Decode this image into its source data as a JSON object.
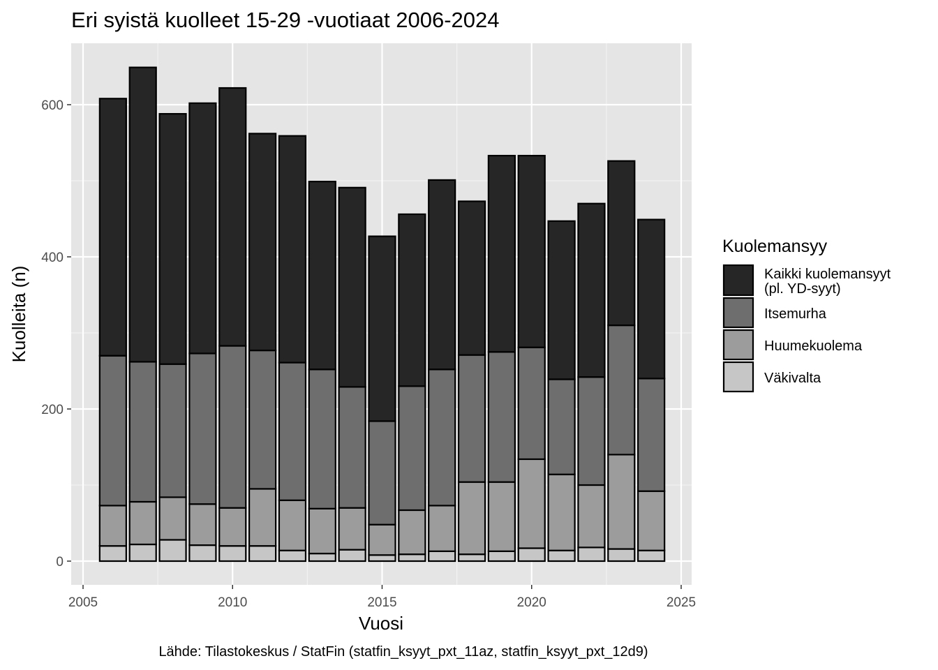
{
  "chart_data": {
    "type": "bar",
    "stacked": true,
    "title": "Eri syistä kuolleet 15-29 -vuotiaat 2006-2024",
    "xlabel": "Vuosi",
    "ylabel": "Kuolleita (n)",
    "caption": "Lähde: Tilastokeskus / StatFin (statfin_ksyyt_pxt_11az, statfin_ksyyt_pxt_12d9)",
    "xlim": [
      2005,
      2025
    ],
    "ylim": [
      0,
      650
    ],
    "x_ticks": [
      "2005",
      "2010",
      "2015",
      "2020",
      "2025"
    ],
    "y_ticks": [
      "0",
      "200",
      "400",
      "600"
    ],
    "grid": true,
    "legend_position": "right",
    "legend": {
      "title": "Kuolemansyy",
      "items": [
        {
          "lines": [
            "Kaikki kuolemansyyt",
            "(pl. YD-syyt)"
          ],
          "color": "#262626"
        },
        {
          "lines": [
            "Itsemurha"
          ],
          "color": "#6e6e6e"
        },
        {
          "lines": [
            "Huumekuolema"
          ],
          "color": "#9c9c9c"
        },
        {
          "lines": [
            "Väkivalta"
          ],
          "color": "#c6c6c6"
        }
      ]
    },
    "x": [
      2006,
      2007,
      2008,
      2009,
      2010,
      2011,
      2012,
      2013,
      2014,
      2015,
      2016,
      2017,
      2018,
      2019,
      2020,
      2021,
      2022,
      2023,
      2024
    ],
    "series": [
      {
        "name": "Väkivalta",
        "color": "#c6c6c6",
        "values": [
          20,
          22,
          28,
          21,
          20,
          20,
          14,
          10,
          15,
          8,
          9,
          13,
          9,
          13,
          17,
          14,
          18,
          16,
          14
        ]
      },
      {
        "name": "Huumekuolema",
        "color": "#9c9c9c",
        "values": [
          53,
          56,
          56,
          54,
          50,
          75,
          66,
          59,
          55,
          40,
          58,
          60,
          95,
          91,
          117,
          100,
          82,
          124,
          78
        ]
      },
      {
        "name": "Itsemurha",
        "color": "#6e6e6e",
        "values": [
          197,
          184,
          175,
          198,
          213,
          182,
          181,
          183,
          159,
          136,
          163,
          179,
          167,
          171,
          147,
          125,
          142,
          170,
          148
        ]
      },
      {
        "name": "Kaikki kuolemansyyt (pl. YD-syyt)",
        "color": "#262626",
        "values": [
          338,
          387,
          329,
          329,
          339,
          285,
          298,
          247,
          262,
          243,
          226,
          249,
          202,
          258,
          252,
          208,
          228,
          216,
          209
        ]
      }
    ]
  }
}
